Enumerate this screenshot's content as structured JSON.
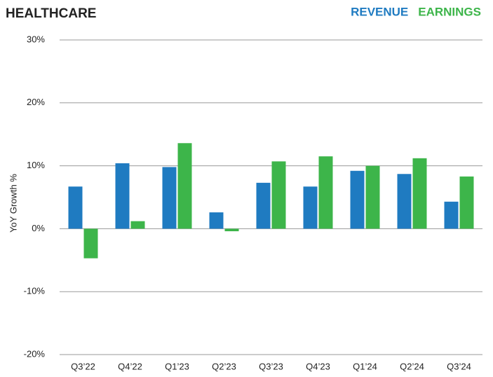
{
  "chart_data": {
    "type": "bar",
    "title": "HEALTHCARE",
    "y_label": "YoY Growth %",
    "categories": [
      "Q3’22",
      "Q4’22",
      "Q1’23",
      "Q2’23",
      "Q3’23",
      "Q4’23",
      "Q1’24",
      "Q2’24",
      "Q3’24"
    ],
    "series": [
      {
        "name": "REVENUE",
        "color": "#1f7bc1",
        "values": [
          6.7,
          10.4,
          9.8,
          2.6,
          7.3,
          6.7,
          9.2,
          8.7,
          4.3
        ]
      },
      {
        "name": "EARNINGS",
        "color": "#3db54a",
        "values": [
          -4.7,
          1.2,
          13.6,
          -0.4,
          10.7,
          11.5,
          10.0,
          11.2,
          8.3
        ]
      }
    ],
    "ylim": [
      -20,
      30
    ],
    "yticks": [
      {
        "value": -20,
        "label": "-20%"
      },
      {
        "value": -10,
        "label": "-10%"
      },
      {
        "value": 0,
        "label": "0%"
      },
      {
        "value": 10,
        "label": "10%"
      },
      {
        "value": 20,
        "label": "20%"
      },
      {
        "value": 30,
        "label": "30%"
      }
    ],
    "grid": true,
    "legend": "top-right"
  }
}
